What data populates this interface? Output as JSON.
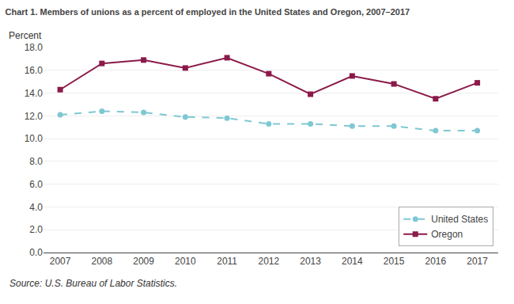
{
  "chart_data": {
    "type": "line",
    "title": "Chart 1. Members of unions as a percent of employed in the United States and Oregon, 2007–2017",
    "ylabel": "Percent",
    "annotations": [
      "Source: U.S. Bureau of Labor Statistics."
    ],
    "x": [
      2007,
      2008,
      2009,
      2010,
      2011,
      2012,
      2013,
      2014,
      2015,
      2016,
      2017
    ],
    "series": [
      {
        "name": "United States",
        "color": "#7EC8D3",
        "marker": "circle",
        "line_style": "dashed",
        "values": [
          12.1,
          12.4,
          12.3,
          11.9,
          11.8,
          11.3,
          11.3,
          11.1,
          11.1,
          10.7,
          10.7
        ]
      },
      {
        "name": "Oregon",
        "color": "#8B1A4A",
        "marker": "square",
        "line_style": "solid",
        "values": [
          14.3,
          16.6,
          16.9,
          16.2,
          17.1,
          15.7,
          13.9,
          15.5,
          14.8,
          13.5,
          14.9
        ]
      }
    ],
    "xlim": [
      2006.6,
      2017.5
    ],
    "xticks": [
      2007,
      2008,
      2009,
      2010,
      2011,
      2012,
      2013,
      2014,
      2015,
      2016,
      2017
    ],
    "ylim": [
      0,
      18.0
    ],
    "yticks": [
      {
        "value": 0.0,
        "label": "0.0"
      },
      {
        "value": 2.0,
        "label": "2.0"
      },
      {
        "value": 4.0,
        "label": "4.0"
      },
      {
        "value": 6.0,
        "label": "6.0"
      },
      {
        "value": 8.0,
        "label": "8.0"
      },
      {
        "value": 10.0,
        "label": "10.0"
      },
      {
        "value": 12.0,
        "label": "12.0"
      },
      {
        "value": 14.0,
        "label": "14.0"
      },
      {
        "value": 16.0,
        "label": "16.0"
      },
      {
        "value": 18.0,
        "label": "18.0"
      }
    ],
    "grid": true,
    "legend": "lower right"
  }
}
